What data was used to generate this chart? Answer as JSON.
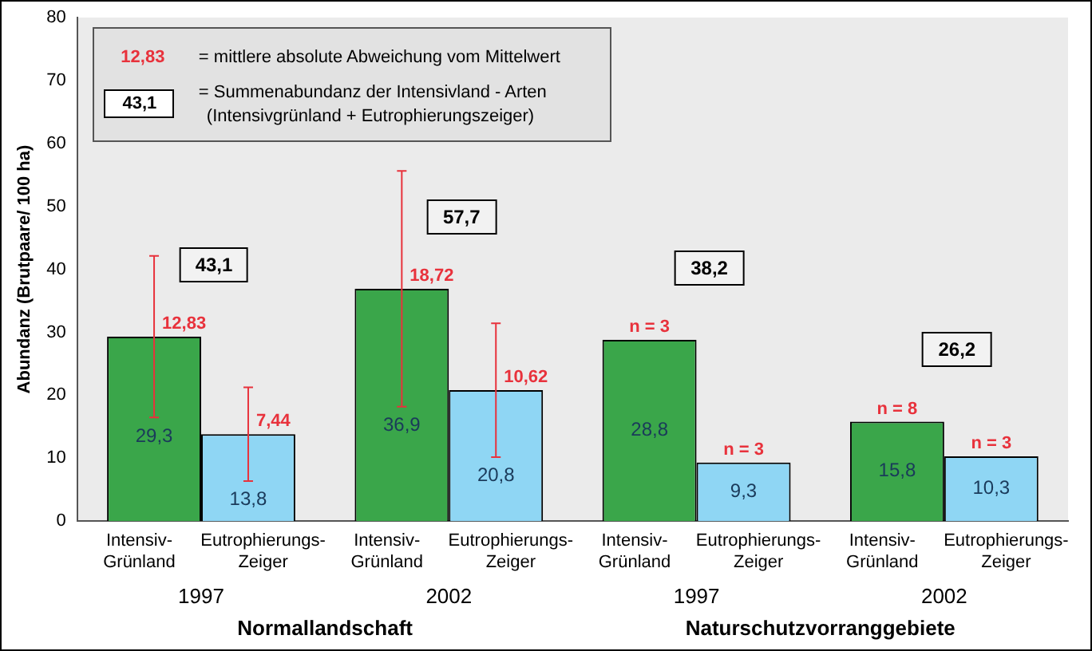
{
  "chart_data": {
    "type": "bar",
    "ylabel": "Abundanz (Brutpaare/ 100 ha)",
    "categories": [
      "Intensiv-Grünland",
      "Eutrophierungs-Zeiger",
      "Intensiv-Grünland",
      "Eutrophierungs-Zeiger",
      "Intensiv-Grünland",
      "Eutrophierungs-Zeiger",
      "Intensiv-Grünland",
      "Eutrophierungs-Zeiger"
    ],
    "values": [
      29.3,
      13.8,
      36.9,
      20.8,
      28.8,
      9.3,
      15.8,
      10.3
    ],
    "value_labels": [
      "29,3",
      "13,8",
      "36,9",
      "20,8",
      "28,8",
      "9,3",
      "15,8",
      "10,3"
    ],
    "colors": [
      "#3aa64a",
      "#8fd6f4",
      "#3aa64a",
      "#8fd6f4",
      "#3aa64a",
      "#8fd6f4",
      "#3aa64a",
      "#8fd6f4"
    ],
    "errors": [
      12.83,
      7.44,
      18.72,
      10.62,
      null,
      null,
      null,
      null
    ],
    "ylim": [
      0,
      80
    ],
    "yticks": [
      0,
      10,
      20,
      30,
      40,
      50,
      60,
      70,
      80
    ],
    "grid": false,
    "legend": false,
    "annotations": [
      "12,83",
      "7,44",
      "18,72",
      "10,62",
      "n = 3",
      "n = 3",
      "n = 8",
      "n = 3",
      "43,1",
      "57,7",
      "38,2",
      "26,2",
      "1997",
      "2002",
      "1997",
      "2002",
      "Normallandschaft",
      "Naturschutzvorranggebiete",
      "12,83",
      "= mittlere absolute Abweichung vom Mittelwert",
      "43,1",
      "= Summenabundanz der Intensivland - Arten",
      "(Intensivgrünland + Eutrophierungszeiger)"
    ]
  }
}
